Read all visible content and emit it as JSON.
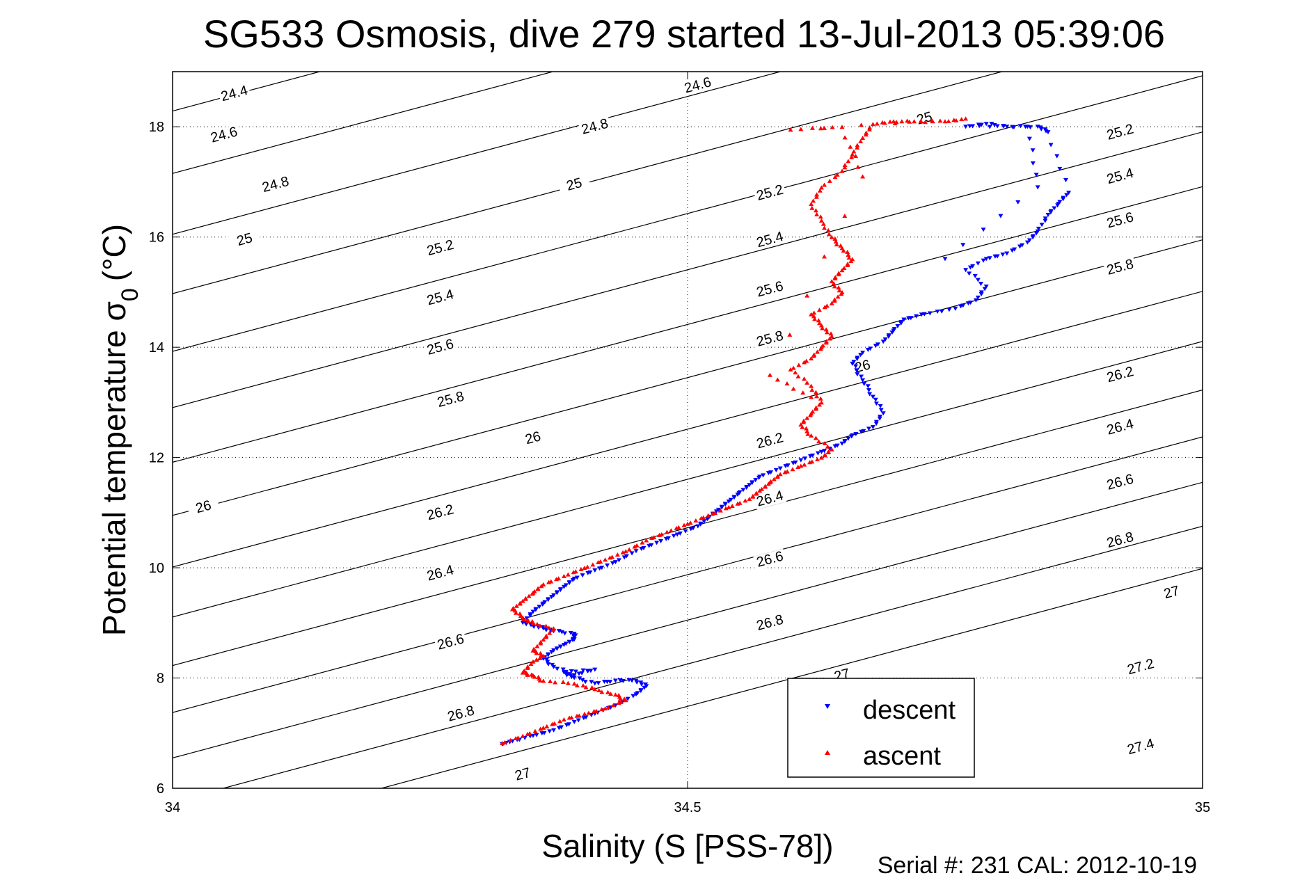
{
  "chart_data": {
    "type": "scatter",
    "title": "SG533 Osmosis, dive 279 started 13-Jul-2013 05:39:06",
    "xlabel": "Salinity (S [PSS-78])",
    "ylabel_main": "Potential temperature σ",
    "ylabel_sub": "0",
    "ylabel_unit": "(°C)",
    "xlim": [
      34,
      35
    ],
    "ylim": [
      6,
      19
    ],
    "xticks": [
      {
        "value": 34,
        "label": "34"
      },
      {
        "value": 34.5,
        "label": "34.5"
      },
      {
        "value": 35,
        "label": "35"
      }
    ],
    "yticks": [
      {
        "value": 6,
        "label": "6"
      },
      {
        "value": 8,
        "label": "8"
      },
      {
        "value": 10,
        "label": "10"
      },
      {
        "value": 12,
        "label": "12"
      },
      {
        "value": 14,
        "label": "14"
      },
      {
        "value": 16,
        "label": "16"
      },
      {
        "value": 18,
        "label": "18"
      }
    ],
    "grid": true,
    "legend_position": "bottom-center",
    "footer": "Serial #: 231  CAL: 2012-10-19",
    "contours": {
      "levels": [
        24.4,
        24.6,
        24.8,
        25,
        25.2,
        25.4,
        25.6,
        25.8,
        26,
        26.2,
        26.4,
        26.6,
        26.8,
        27,
        27.2,
        27.4
      ],
      "labels": [
        {
          "text": "24.4",
          "x": 34.06,
          "y": 18.55
        },
        {
          "text": "24.6",
          "x": 34.51,
          "y": 18.7
        },
        {
          "text": "24.6",
          "x": 34.05,
          "y": 17.8
        },
        {
          "text": "24.8",
          "x": 34.1,
          "y": 16.9
        },
        {
          "text": "24.8",
          "x": 34.41,
          "y": 17.95
        },
        {
          "text": "25",
          "x": 34.73,
          "y": 18.1
        },
        {
          "text": "25",
          "x": 34.07,
          "y": 15.9
        },
        {
          "text": "25",
          "x": 34.39,
          "y": 16.9
        },
        {
          "text": "25.2",
          "x": 34.92,
          "y": 17.85
        },
        {
          "text": "25.2",
          "x": 34.26,
          "y": 15.75
        },
        {
          "text": "25.2",
          "x": 34.58,
          "y": 16.75
        },
        {
          "text": "25.4",
          "x": 34.92,
          "y": 17.05
        },
        {
          "text": "25.4",
          "x": 34.26,
          "y": 14.85
        },
        {
          "text": "25.4",
          "x": 34.58,
          "y": 15.9
        },
        {
          "text": "25.6",
          "x": 34.92,
          "y": 16.25
        },
        {
          "text": "25.6",
          "x": 34.26,
          "y": 13.95
        },
        {
          "text": "25.6",
          "x": 34.58,
          "y": 15.0
        },
        {
          "text": "25.8",
          "x": 34.92,
          "y": 15.4
        },
        {
          "text": "25.8",
          "x": 34.27,
          "y": 13.0
        },
        {
          "text": "25.8",
          "x": 34.58,
          "y": 14.1
        },
        {
          "text": "26",
          "x": 34.67,
          "y": 13.6
        },
        {
          "text": "26",
          "x": 34.35,
          "y": 12.3
        },
        {
          "text": "26",
          "x": 34.03,
          "y": 11.05
        },
        {
          "text": "26.2",
          "x": 34.92,
          "y": 13.45
        },
        {
          "text": "26.2",
          "x": 34.26,
          "y": 10.95
        },
        {
          "text": "26.2",
          "x": 34.58,
          "y": 12.25
        },
        {
          "text": "26.4",
          "x": 34.92,
          "y": 12.5
        },
        {
          "text": "26.4",
          "x": 34.26,
          "y": 9.85
        },
        {
          "text": "26.4",
          "x": 34.58,
          "y": 11.2
        },
        {
          "text": "26.6",
          "x": 34.92,
          "y": 11.5
        },
        {
          "text": "26.6",
          "x": 34.27,
          "y": 8.6
        },
        {
          "text": "26.6",
          "x": 34.58,
          "y": 10.1
        },
        {
          "text": "26.8",
          "x": 34.92,
          "y": 10.45
        },
        {
          "text": "26.8",
          "x": 34.28,
          "y": 7.3
        },
        {
          "text": "26.8",
          "x": 34.58,
          "y": 8.95
        },
        {
          "text": "27",
          "x": 34.97,
          "y": 9.5
        },
        {
          "text": "27",
          "x": 34.34,
          "y": 6.2
        },
        {
          "text": "27",
          "x": 34.65,
          "y": 8.0
        },
        {
          "text": "27.2",
          "x": 34.94,
          "y": 8.15
        },
        {
          "text": "27.4",
          "x": 34.94,
          "y": 6.7
        }
      ]
    },
    "series": [
      {
        "name": "descent",
        "color": "#0000ff",
        "marker": "triangle-down",
        "points": [
          [
            34.32,
            6.8
          ],
          [
            34.33,
            6.85
          ],
          [
            34.35,
            6.95
          ],
          [
            34.37,
            7.05
          ],
          [
            34.39,
            7.2
          ],
          [
            34.41,
            7.35
          ],
          [
            34.43,
            7.5
          ],
          [
            34.45,
            7.7
          ],
          [
            34.46,
            7.85
          ],
          [
            34.45,
            7.95
          ],
          [
            34.43,
            7.95
          ],
          [
            34.41,
            7.9
          ],
          [
            34.39,
            8.0
          ],
          [
            34.38,
            8.1
          ],
          [
            34.41,
            8.15
          ],
          [
            34.39,
            8.05
          ],
          [
            34.37,
            8.2
          ],
          [
            34.36,
            8.35
          ],
          [
            34.37,
            8.5
          ],
          [
            34.38,
            8.6
          ],
          [
            34.39,
            8.7
          ],
          [
            34.39,
            8.8
          ],
          [
            34.37,
            8.85
          ],
          [
            34.36,
            8.9
          ],
          [
            34.35,
            8.95
          ],
          [
            34.34,
            9.0
          ],
          [
            34.35,
            9.2
          ],
          [
            34.36,
            9.35
          ],
          [
            34.37,
            9.5
          ],
          [
            34.38,
            9.65
          ],
          [
            34.39,
            9.8
          ],
          [
            34.41,
            9.95
          ],
          [
            34.43,
            10.1
          ],
          [
            34.45,
            10.3
          ],
          [
            34.47,
            10.45
          ],
          [
            34.49,
            10.6
          ],
          [
            34.51,
            10.75
          ],
          [
            34.52,
            10.9
          ],
          [
            34.53,
            11.05
          ],
          [
            34.54,
            11.2
          ],
          [
            34.55,
            11.35
          ],
          [
            34.56,
            11.5
          ],
          [
            34.57,
            11.65
          ],
          [
            34.59,
            11.8
          ],
          [
            34.61,
            11.95
          ],
          [
            34.63,
            12.1
          ],
          [
            34.65,
            12.25
          ],
          [
            34.66,
            12.4
          ],
          [
            34.68,
            12.55
          ],
          [
            34.69,
            12.8
          ],
          [
            34.68,
            13.1
          ],
          [
            34.67,
            13.4
          ],
          [
            34.66,
            13.7
          ],
          [
            34.67,
            13.9
          ],
          [
            34.69,
            14.1
          ],
          [
            34.7,
            14.3
          ],
          [
            34.71,
            14.5
          ],
          [
            34.73,
            14.6
          ],
          [
            34.76,
            14.7
          ],
          [
            34.78,
            14.85
          ],
          [
            34.79,
            15.1
          ],
          [
            34.77,
            15.4
          ],
          [
            34.79,
            15.6
          ],
          [
            34.81,
            15.7
          ],
          [
            34.83,
            15.9
          ],
          [
            34.84,
            16.1
          ],
          [
            34.85,
            16.4
          ],
          [
            34.86,
            16.6
          ],
          [
            34.87,
            16.8
          ],
          [
            34.85,
            17.9
          ],
          [
            34.84,
            18.0
          ],
          [
            34.81,
            18.0
          ],
          [
            34.79,
            18.05
          ],
          [
            34.77,
            18.0
          ],
          [
            34.83,
            18.0
          ],
          [
            34.84,
            16.9
          ],
          [
            34.75,
            15.6
          ]
        ]
      },
      {
        "name": "ascent",
        "color": "#ff0000",
        "marker": "triangle-up",
        "points": [
          [
            34.32,
            6.82
          ],
          [
            34.34,
            6.95
          ],
          [
            34.36,
            7.1
          ],
          [
            34.38,
            7.25
          ],
          [
            34.4,
            7.35
          ],
          [
            34.42,
            7.45
          ],
          [
            34.44,
            7.6
          ],
          [
            34.43,
            7.7
          ],
          [
            34.41,
            7.8
          ],
          [
            34.39,
            7.9
          ],
          [
            34.36,
            7.95
          ],
          [
            34.35,
            8.05
          ],
          [
            34.34,
            8.1
          ],
          [
            34.35,
            8.3
          ],
          [
            34.36,
            8.4
          ],
          [
            34.35,
            8.5
          ],
          [
            34.36,
            8.7
          ],
          [
            34.37,
            8.9
          ],
          [
            34.35,
            9.0
          ],
          [
            34.34,
            9.1
          ],
          [
            34.33,
            9.25
          ],
          [
            34.34,
            9.4
          ],
          [
            34.35,
            9.55
          ],
          [
            34.36,
            9.7
          ],
          [
            34.38,
            9.85
          ],
          [
            34.4,
            10.0
          ],
          [
            34.42,
            10.15
          ],
          [
            34.44,
            10.3
          ],
          [
            34.46,
            10.5
          ],
          [
            34.48,
            10.65
          ],
          [
            34.5,
            10.8
          ],
          [
            34.52,
            10.95
          ],
          [
            34.54,
            11.1
          ],
          [
            34.56,
            11.25
          ],
          [
            34.57,
            11.4
          ],
          [
            34.58,
            11.55
          ],
          [
            34.59,
            11.7
          ],
          [
            34.61,
            11.85
          ],
          [
            34.63,
            12.0
          ],
          [
            34.64,
            12.15
          ],
          [
            34.62,
            12.4
          ],
          [
            34.61,
            12.6
          ],
          [
            34.62,
            12.8
          ],
          [
            34.63,
            13.0
          ],
          [
            34.62,
            13.3
          ],
          [
            34.6,
            13.6
          ],
          [
            34.62,
            13.8
          ],
          [
            34.63,
            14.0
          ],
          [
            34.64,
            14.2
          ],
          [
            34.63,
            14.4
          ],
          [
            34.62,
            14.6
          ],
          [
            34.64,
            14.8
          ],
          [
            34.65,
            15.0
          ],
          [
            34.64,
            15.2
          ],
          [
            34.65,
            15.4
          ],
          [
            34.66,
            15.6
          ],
          [
            34.65,
            15.8
          ],
          [
            34.64,
            16.0
          ],
          [
            34.63,
            16.3
          ],
          [
            34.62,
            16.6
          ],
          [
            34.63,
            16.9
          ],
          [
            34.65,
            17.2
          ],
          [
            34.66,
            17.5
          ],
          [
            34.67,
            17.8
          ],
          [
            34.68,
            18.05
          ],
          [
            34.7,
            18.1
          ],
          [
            34.72,
            18.1
          ],
          [
            34.75,
            18.1
          ],
          [
            34.77,
            18.15
          ],
          [
            34.6,
            17.95
          ],
          [
            34.65,
            18.0
          ],
          [
            34.67,
            17.1
          ],
          [
            34.58,
            13.5
          ],
          [
            34.62,
            13.1
          ]
        ]
      }
    ]
  }
}
